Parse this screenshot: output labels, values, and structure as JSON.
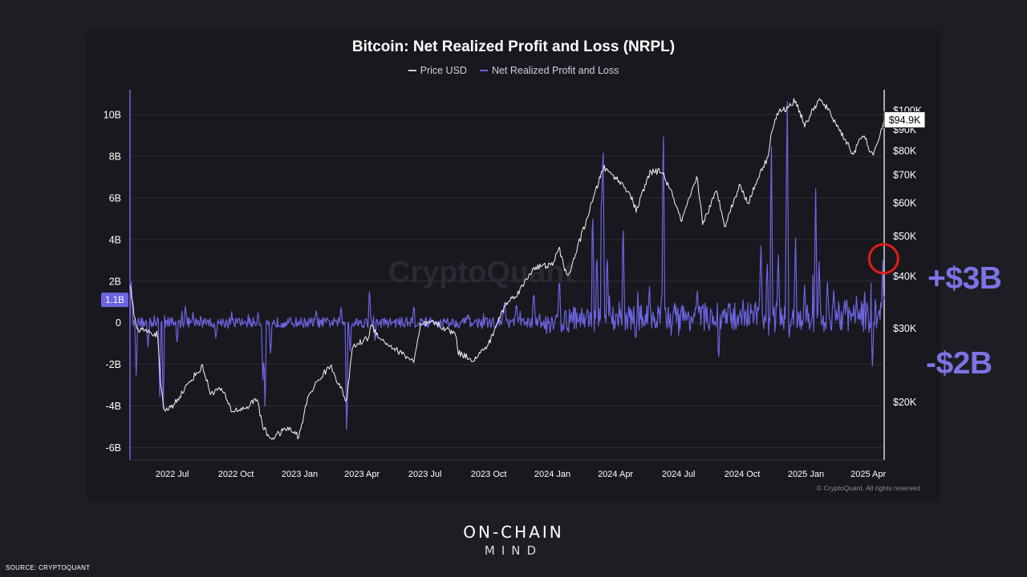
{
  "source": "SOURCE: CRYPTOQUANT",
  "brand": {
    "line1": "ON-CHAIN",
    "line2": "MIND"
  },
  "copyright": "© CryptoQuant. All rights reserved",
  "watermark": "CryptoQuant",
  "annotations": {
    "positive": "+$3B",
    "negative": "-$2B"
  },
  "colors": {
    "nrpl": "#6c64e0",
    "price": "#ffffff",
    "highlight_circle": "#e31b1b",
    "background": "#18181e"
  },
  "chart_data": {
    "type": "line",
    "title": "Bitcoin: Net Realized Profit and Loss (NRPL)",
    "legend": [
      "Price USD",
      "Net Realized Profit and Loss"
    ],
    "legend_placement": "top-center",
    "x_tick_labels": [
      "2022 Jul",
      "2022 Oct",
      "2023 Jan",
      "2023 Apr",
      "2023 Jul",
      "2023 Oct",
      "2024 Jan",
      "2024 Apr",
      "2024 Jul",
      "2024 Oct",
      "2025 Jan",
      "2025 Apr"
    ],
    "left_axis": {
      "series": "Net Realized Profit and Loss",
      "unit": "B",
      "ticks": [
        10,
        8,
        6,
        4,
        2,
        0,
        -2,
        -4,
        -6
      ],
      "tick_labels": [
        "10B",
        "8B",
        "6B",
        "4B",
        "2B",
        "0",
        "-2B",
        "-4B",
        "-6B"
      ],
      "range": [
        -6.6,
        11.2
      ],
      "current_value_label": "1.1B",
      "current_value": 1.1
    },
    "right_axis": {
      "series": "Price USD",
      "scale": "log",
      "tick_labels": [
        "$100K",
        "$90K",
        "$80K",
        "$70K",
        "$60K",
        "$50K",
        "$40K",
        "$30K",
        "$20K"
      ],
      "ticks": [
        100000,
        90000,
        80000,
        70000,
        60000,
        50000,
        40000,
        30000,
        20000
      ],
      "range": [
        14500,
        112000
      ],
      "current_value_label": "$94.9K",
      "current_value": 94900
    },
    "x_range": [
      "2022-05-01",
      "2025-04-24"
    ],
    "grid": "horizontal",
    "series": [
      {
        "name": "Price USD",
        "color": "#ffffff",
        "points": [
          [
            "2022-05-01",
            38000
          ],
          [
            "2022-05-10",
            30000
          ],
          [
            "2022-05-25",
            29500
          ],
          [
            "2022-06-10",
            29000
          ],
          [
            "2022-06-14",
            22000
          ],
          [
            "2022-06-19",
            19000
          ],
          [
            "2022-07-01",
            19500
          ],
          [
            "2022-07-15",
            21000
          ],
          [
            "2022-08-01",
            23000
          ],
          [
            "2022-08-14",
            24300
          ],
          [
            "2022-08-25",
            21000
          ],
          [
            "2022-09-10",
            21500
          ],
          [
            "2022-09-25",
            19000
          ],
          [
            "2022-10-15",
            19300
          ],
          [
            "2022-11-01",
            20400
          ],
          [
            "2022-11-08",
            17500
          ],
          [
            "2022-11-20",
            16300
          ],
          [
            "2022-12-15",
            17300
          ],
          [
            "2022-12-31",
            16500
          ],
          [
            "2023-01-14",
            20800
          ],
          [
            "2023-02-01",
            23000
          ],
          [
            "2023-02-15",
            24400
          ],
          [
            "2023-03-10",
            20000
          ],
          [
            "2023-03-18",
            27000
          ],
          [
            "2023-04-10",
            28500
          ],
          [
            "2023-04-14",
            30400
          ],
          [
            "2023-05-01",
            28000
          ],
          [
            "2023-05-15",
            27000
          ],
          [
            "2023-06-15",
            25000
          ],
          [
            "2023-06-25",
            30500
          ],
          [
            "2023-07-13",
            31000
          ],
          [
            "2023-08-15",
            29000
          ],
          [
            "2023-08-18",
            26200
          ],
          [
            "2023-09-10",
            25200
          ],
          [
            "2023-10-01",
            27500
          ],
          [
            "2023-10-24",
            34000
          ],
          [
            "2023-11-15",
            37000
          ],
          [
            "2023-12-05",
            42000
          ],
          [
            "2023-12-31",
            42500
          ],
          [
            "2024-01-11",
            46500
          ],
          [
            "2024-01-23",
            39500
          ],
          [
            "2024-02-15",
            52000
          ],
          [
            "2024-03-01",
            62000
          ],
          [
            "2024-03-14",
            73000
          ],
          [
            "2024-04-01",
            69000
          ],
          [
            "2024-04-20",
            64000
          ],
          [
            "2024-05-01",
            57500
          ],
          [
            "2024-05-21",
            71000
          ],
          [
            "2024-06-07",
            71500
          ],
          [
            "2024-06-25",
            61000
          ],
          [
            "2024-07-05",
            54000
          ],
          [
            "2024-07-28",
            69000
          ],
          [
            "2024-08-05",
            53500
          ],
          [
            "2024-08-25",
            64000
          ],
          [
            "2024-09-06",
            53000
          ],
          [
            "2024-09-27",
            66000
          ],
          [
            "2024-10-10",
            60000
          ],
          [
            "2024-10-29",
            72500
          ],
          [
            "2024-11-06",
            76000
          ],
          [
            "2024-11-13",
            90000
          ],
          [
            "2024-11-22",
            99000
          ],
          [
            "2024-12-05",
            101000
          ],
          [
            "2024-12-17",
            106000
          ],
          [
            "2024-12-30",
            92000
          ],
          [
            "2025-01-20",
            106000
          ],
          [
            "2025-02-01",
            101000
          ],
          [
            "2025-02-25",
            86000
          ],
          [
            "2025-03-10",
            78500
          ],
          [
            "2025-03-25",
            87500
          ],
          [
            "2025-04-08",
            77000
          ],
          [
            "2025-04-15",
            84500
          ],
          [
            "2025-04-24",
            94900
          ]
        ]
      },
      {
        "name": "Net Realized Profit and Loss",
        "color": "#6c64e0",
        "baseline_range": [
          -0.4,
          0.4
        ],
        "spikes": [
          [
            "2022-05-03",
            2.0
          ],
          [
            "2022-05-10",
            -2.5
          ],
          [
            "2022-05-27",
            -1.2
          ],
          [
            "2022-06-13",
            -3.6
          ],
          [
            "2022-06-18",
            -4.2
          ],
          [
            "2022-07-08",
            -1.0
          ],
          [
            "2022-07-20",
            0.8
          ],
          [
            "2022-09-02",
            -0.8
          ],
          [
            "2022-11-02",
            0.5
          ],
          [
            "2022-11-09",
            -3.0
          ],
          [
            "2022-11-12",
            -4.3
          ],
          [
            "2022-11-20",
            -1.6
          ],
          [
            "2023-01-25",
            0.6
          ],
          [
            "2023-03-02",
            0.8
          ],
          [
            "2023-03-15",
            -1.5
          ],
          [
            "2023-03-10",
            -5.8
          ],
          [
            "2023-04-12",
            1.6
          ],
          [
            "2023-04-20",
            -1.0
          ],
          [
            "2023-06-15",
            0.9
          ],
          [
            "2023-09-01",
            0.5
          ],
          [
            "2023-10-24",
            1.2
          ],
          [
            "2023-11-10",
            1.0
          ],
          [
            "2023-12-05",
            1.6
          ],
          [
            "2024-01-11",
            2.4
          ],
          [
            "2024-02-28",
            5.8
          ],
          [
            "2024-03-05",
            3.5
          ],
          [
            "2024-03-12",
            7.3
          ],
          [
            "2024-03-14",
            9.5
          ],
          [
            "2024-03-20",
            3.4
          ],
          [
            "2024-04-12",
            5.0
          ],
          [
            "2024-04-30",
            -1.0
          ],
          [
            "2024-05-20",
            1.9
          ],
          [
            "2024-06-07",
            1.5
          ],
          [
            "2024-06-09",
            10.0
          ],
          [
            "2024-06-25",
            1.0
          ],
          [
            "2024-07-28",
            1.5
          ],
          [
            "2024-08-05",
            0.9
          ],
          [
            "2024-08-28",
            -2.0
          ],
          [
            "2024-09-28",
            0.6
          ],
          [
            "2024-10-20",
            1.0
          ],
          [
            "2024-10-28",
            4.0
          ],
          [
            "2024-11-06",
            3.0
          ],
          [
            "2024-11-12",
            9.0
          ],
          [
            "2024-11-22",
            3.5
          ],
          [
            "2024-12-04",
            6.5
          ],
          [
            "2024-12-05",
            10.5
          ],
          [
            "2024-12-17",
            4.0
          ],
          [
            "2024-12-30",
            1.8
          ],
          [
            "2025-01-15",
            6.5
          ],
          [
            "2025-01-20",
            3.0
          ],
          [
            "2025-02-01",
            2.0
          ],
          [
            "2025-02-10",
            1.6
          ],
          [
            "2025-03-01",
            1.0
          ],
          [
            "2025-03-15",
            1.2
          ],
          [
            "2025-04-07",
            -2.0
          ],
          [
            "2025-04-22",
            3.0
          ],
          [
            "2025-04-24",
            1.1
          ]
        ]
      }
    ]
  }
}
